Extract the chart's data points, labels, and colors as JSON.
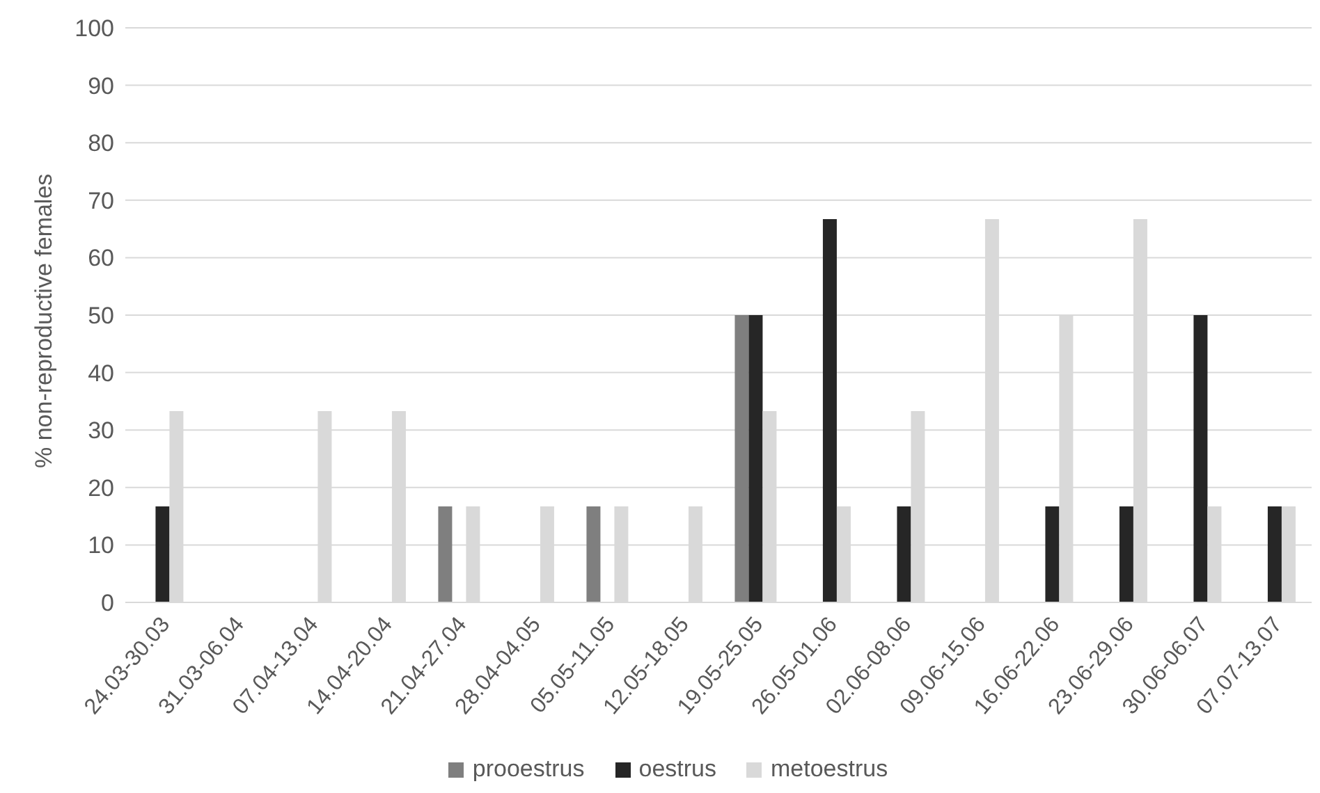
{
  "chart_data": {
    "type": "bar",
    "ylabel": "% non-reproductive females",
    "categories": [
      "24.03-30.03",
      "31.03-06.04",
      "07.04-13.04",
      "14.04-20.04",
      "21.04-27.04",
      "28.04-04.05",
      "05.05-11.05",
      "12.05-18.05",
      "19.05-25.05",
      "26.05-01.06",
      "02.06-08.06",
      "09.06-15.06",
      "16.06-22.06",
      "23.06-29.06",
      "30.06-06.07",
      "07.07-13.07"
    ],
    "series": [
      {
        "name": "prooestrus",
        "color": "#7f7f7f",
        "values": [
          0,
          0,
          0,
          0,
          16.7,
          0,
          16.7,
          0,
          50,
          0,
          0,
          0,
          0,
          0,
          0,
          0
        ]
      },
      {
        "name": "oestrus",
        "color": "#262626",
        "values": [
          16.7,
          0,
          0,
          0,
          0,
          0,
          0,
          0,
          50,
          66.7,
          16.7,
          0,
          16.7,
          16.7,
          50,
          16.7
        ]
      },
      {
        "name": "metoestrus",
        "color": "#d9d9d9",
        "values": [
          33.3,
          0,
          33.3,
          33.3,
          16.7,
          16.7,
          16.7,
          16.7,
          33.3,
          16.7,
          33.3,
          66.7,
          50,
          66.7,
          16.7,
          16.7
        ]
      }
    ],
    "ylim": [
      0,
      100
    ],
    "yticks": [
      0,
      10,
      20,
      30,
      40,
      50,
      60,
      70,
      80,
      90,
      100
    ],
    "grid": "y",
    "legend": "bottom"
  }
}
